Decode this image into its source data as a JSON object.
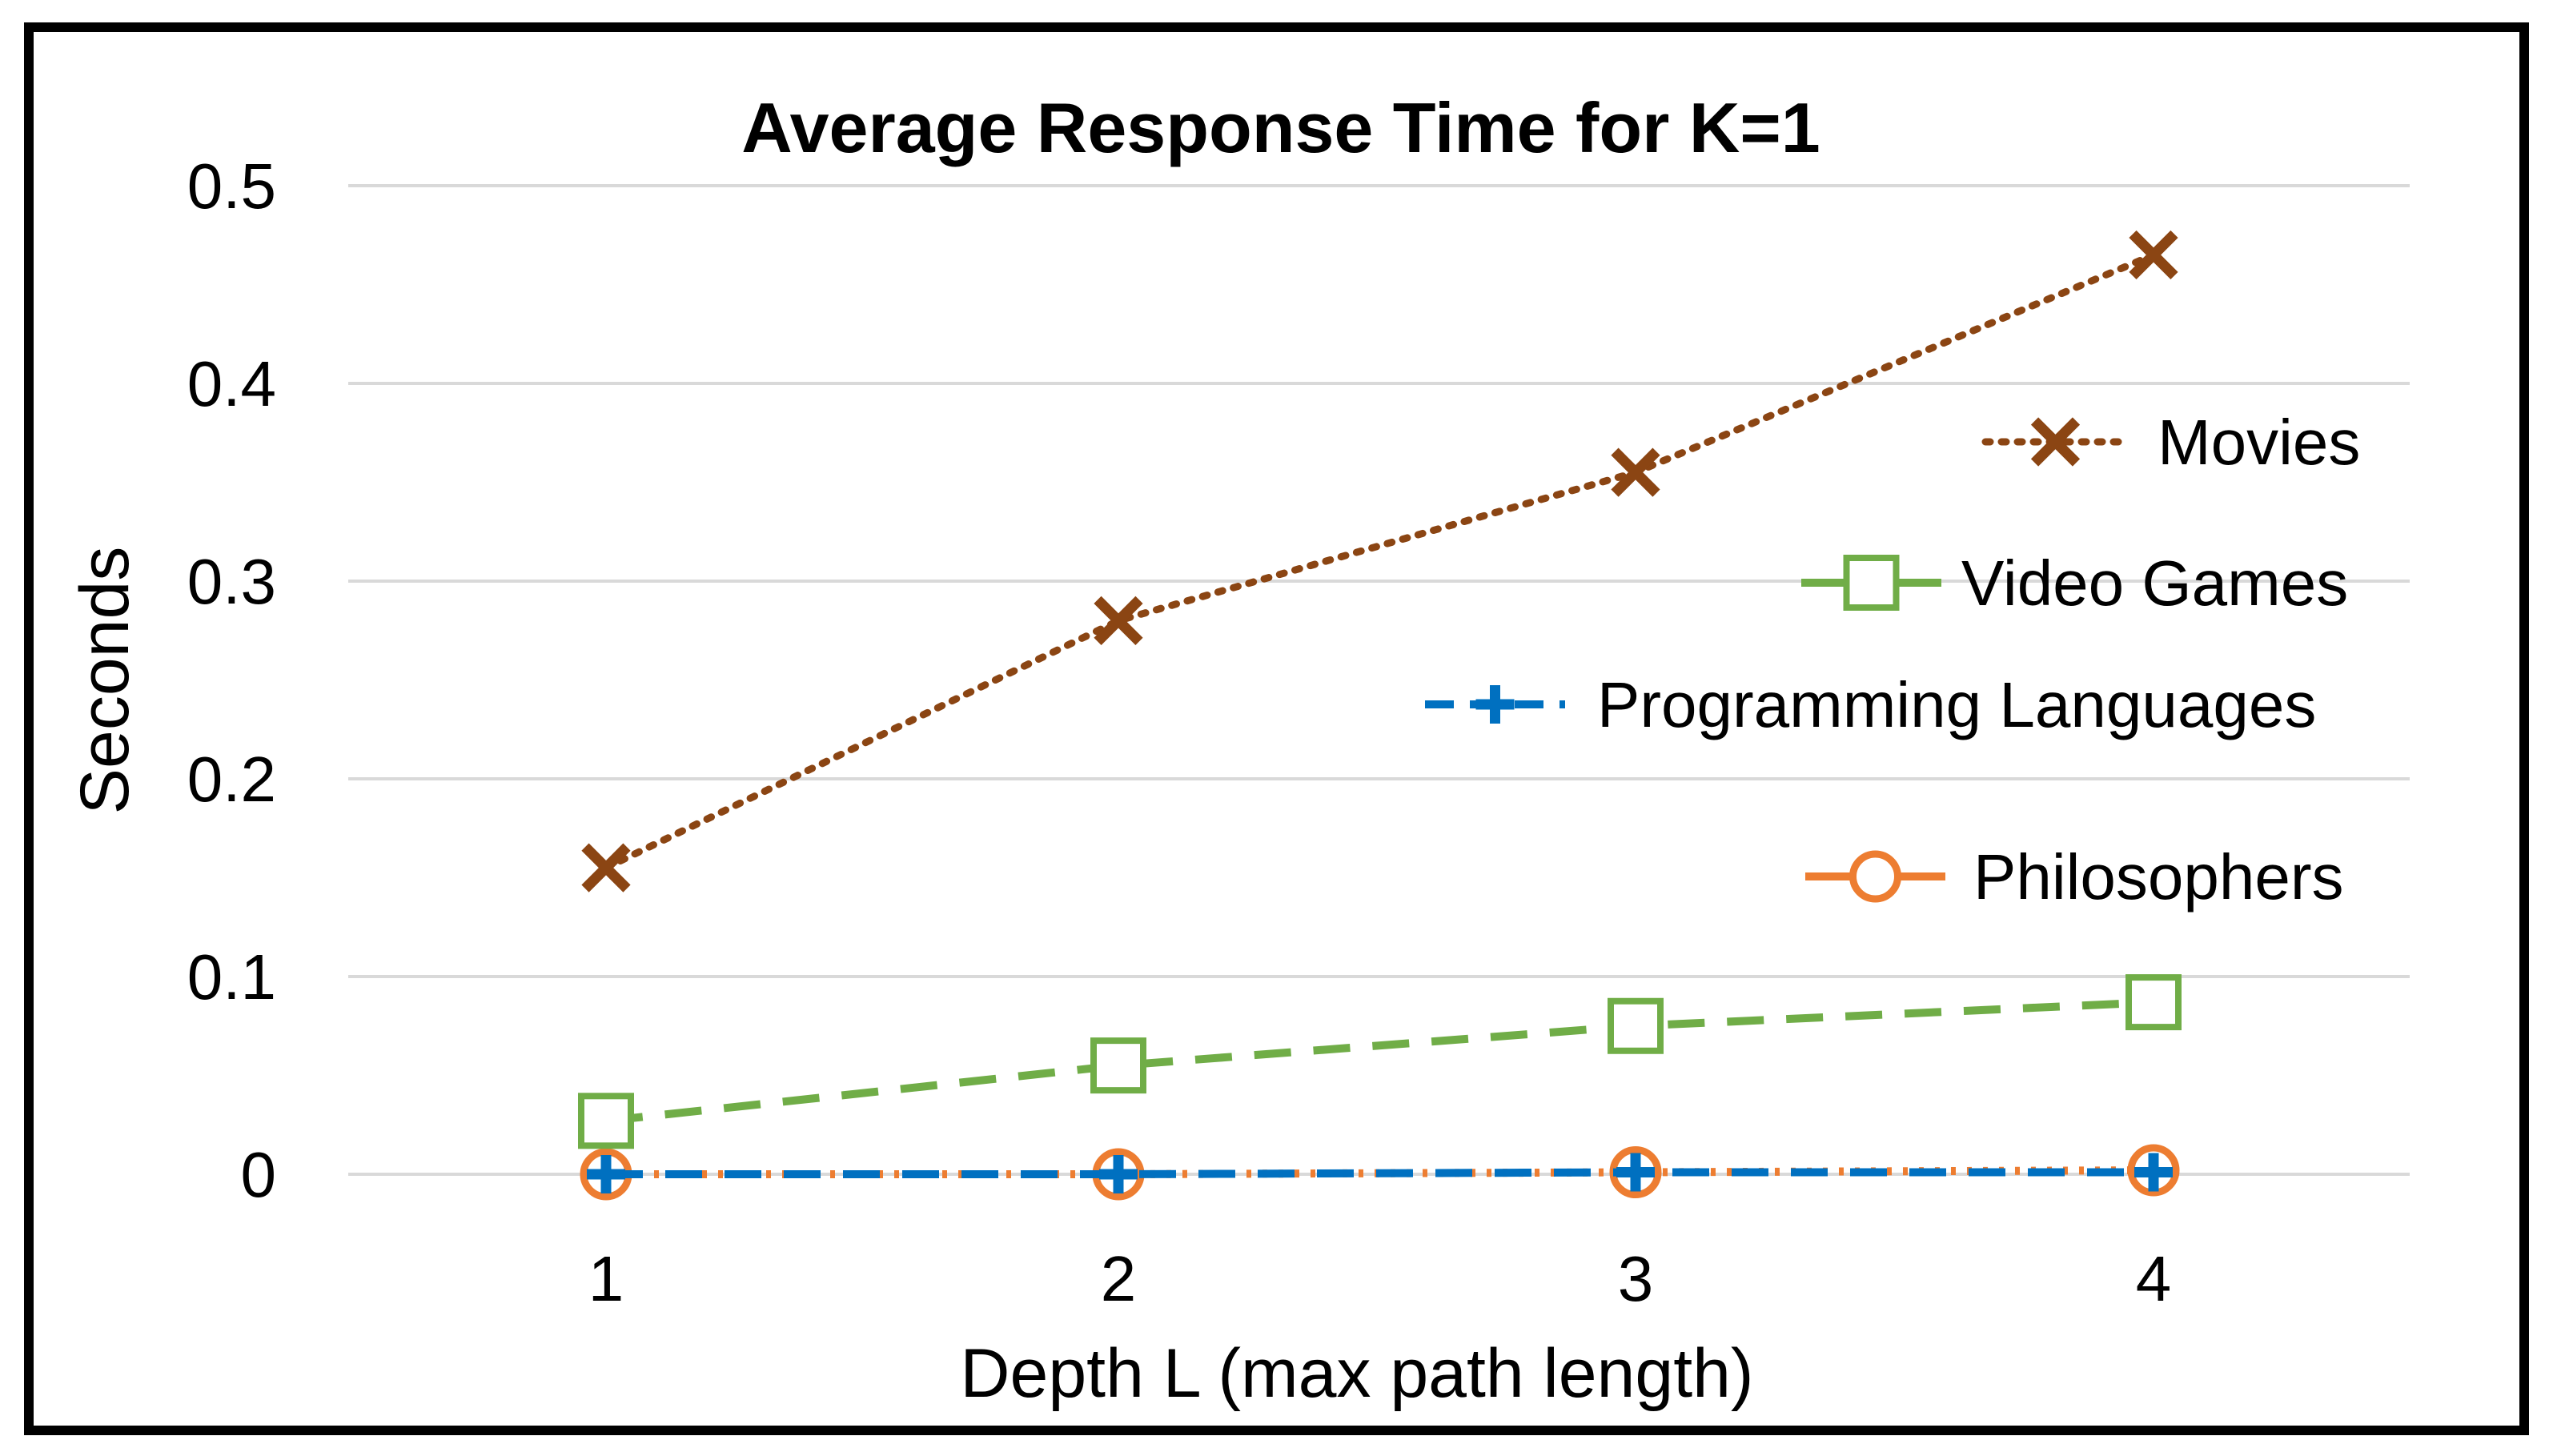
{
  "chart_data": {
    "type": "line",
    "title": "Average Response Time for K=1",
    "xlabel": "Depth L (max path length)",
    "ylabel": "Seconds",
    "categories": [
      "1",
      "2",
      "3",
      "4"
    ],
    "y_ticks": [
      "0",
      "0.1",
      "0.2",
      "0.3",
      "0.4",
      "0.5"
    ],
    "ylim": [
      0,
      0.5
    ],
    "grid": "horizontal",
    "legend_position": "right",
    "series": [
      {
        "name": "Movies",
        "values": [
          0.155,
          0.28,
          0.355,
          0.465
        ],
        "color": "#8B4513",
        "line_style": "dotted",
        "marker": "x"
      },
      {
        "name": "Video Games",
        "values": [
          0.027,
          0.055,
          0.075,
          0.087
        ],
        "color": "#70AD47",
        "line_style": "dashed",
        "marker": "square"
      },
      {
        "name": "Programming Languages",
        "values": [
          0.0,
          0.0,
          0.001,
          0.001
        ],
        "color": "#0070C0",
        "line_style": "dashed",
        "marker": "plus"
      },
      {
        "name": "Philosophers",
        "values": [
          0.0,
          0.0,
          0.001,
          0.002
        ],
        "color": "#ED7D31",
        "line_style": "dotted",
        "marker": "circle"
      }
    ]
  }
}
